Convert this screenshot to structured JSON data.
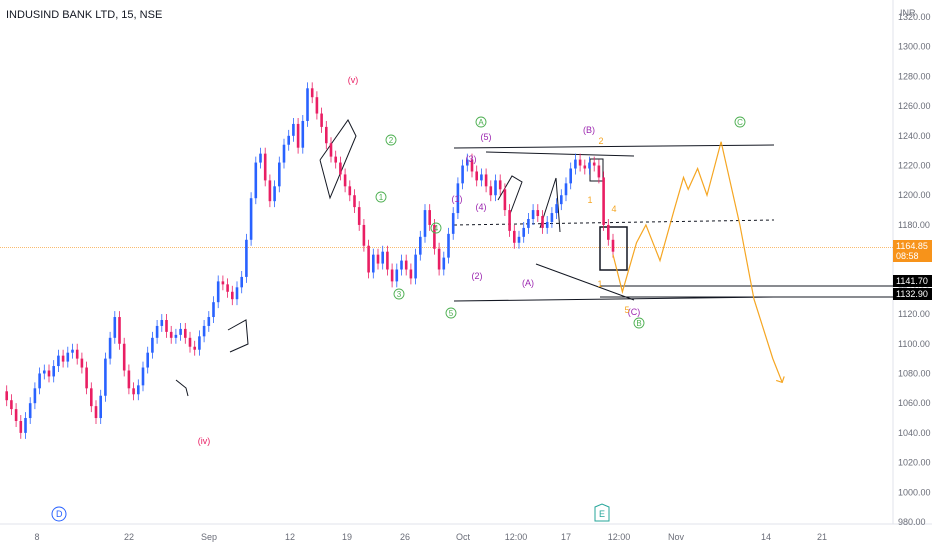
{
  "header": {
    "title": "INDUSIND BANK LTD, 15, NSE"
  },
  "price_axis": {
    "currency": "INR"
  },
  "markers": {
    "dividend": "D",
    "earnings": "E"
  },
  "price_tags": [
    {
      "label": "1164.85",
      "sublabel": "08:58",
      "price": 1164.85,
      "bg": "#f7931a"
    },
    {
      "label": "1141.70",
      "price": 1141.7,
      "bg": "#000000"
    },
    {
      "label": "1132.90",
      "price": 1132.9,
      "bg": "#000000"
    }
  ],
  "colors": {
    "up": "#2962ff",
    "down": "#e91e63",
    "projection": "#f5a623",
    "wave_green": "#4caf50",
    "wave_purple": "#9c27b0",
    "wave_red": "#e91e63"
  },
  "chart_data": {
    "type": "line",
    "title": "INDUSIND BANK LTD, 15, NSE",
    "y_range": [
      980,
      1320
    ],
    "y_ticks": [
      980,
      1000,
      1020,
      1040,
      1060,
      1080,
      1100,
      1120,
      1140,
      1160,
      1180,
      1200,
      1220,
      1240,
      1260,
      1280,
      1300,
      1320
    ],
    "x_ticks": [
      "8",
      "22",
      "Sep",
      "12",
      "19",
      "26",
      "Oct",
      "12:00",
      "17",
      "12:00",
      "Nov",
      "14",
      "21"
    ],
    "series": [
      {
        "name": "",
        "points": [
          [
            0,
            1068
          ],
          [
            1,
            1062
          ],
          [
            2,
            1056
          ],
          [
            3,
            1048
          ],
          [
            4,
            1040
          ],
          [
            5,
            1050
          ],
          [
            6,
            1060
          ],
          [
            7,
            1070
          ],
          [
            8,
            1080
          ],
          [
            9,
            1082
          ],
          [
            10,
            1078
          ],
          [
            11,
            1085
          ],
          [
            12,
            1092
          ],
          [
            13,
            1088
          ],
          [
            14,
            1094
          ],
          [
            15,
            1096
          ],
          [
            16,
            1090
          ],
          [
            17,
            1084
          ],
          [
            18,
            1070
          ],
          [
            19,
            1058
          ],
          [
            20,
            1050
          ],
          [
            21,
            1065
          ],
          [
            22,
            1090
          ],
          [
            23,
            1104
          ],
          [
            24,
            1118
          ],
          [
            25,
            1100
          ],
          [
            26,
            1082
          ],
          [
            27,
            1070
          ],
          [
            28,
            1066
          ],
          [
            29,
            1072
          ],
          [
            30,
            1084
          ],
          [
            31,
            1094
          ],
          [
            32,
            1104
          ],
          [
            33,
            1112
          ],
          [
            34,
            1116
          ],
          [
            35,
            1108
          ],
          [
            36,
            1104
          ],
          [
            37,
            1106
          ],
          [
            38,
            1110
          ],
          [
            39,
            1104
          ],
          [
            40,
            1098
          ],
          [
            41,
            1096
          ],
          [
            42,
            1105
          ],
          [
            43,
            1112
          ],
          [
            44,
            1118
          ],
          [
            45,
            1128
          ],
          [
            46,
            1142
          ],
          [
            47,
            1140
          ],
          [
            48,
            1135
          ],
          [
            49,
            1130
          ],
          [
            50,
            1138
          ],
          [
            51,
            1145
          ],
          [
            52,
            1170
          ],
          [
            53,
            1198
          ],
          [
            54,
            1222
          ],
          [
            55,
            1228
          ],
          [
            56,
            1210
          ],
          [
            57,
            1196
          ],
          [
            58,
            1206
          ],
          [
            59,
            1222
          ],
          [
            60,
            1234
          ],
          [
            61,
            1240
          ],
          [
            62,
            1248
          ],
          [
            63,
            1232
          ],
          [
            64,
            1250
          ],
          [
            65,
            1272
          ],
          [
            66,
            1266
          ],
          [
            67,
            1255
          ],
          [
            68,
            1246
          ],
          [
            69,
            1235
          ],
          [
            70,
            1226
          ],
          [
            71,
            1222
          ],
          [
            72,
            1214
          ],
          [
            73,
            1206
          ],
          [
            74,
            1200
          ],
          [
            75,
            1192
          ],
          [
            76,
            1180
          ],
          [
            77,
            1166
          ],
          [
            78,
            1148
          ],
          [
            79,
            1160
          ],
          [
            80,
            1154
          ],
          [
            81,
            1162
          ],
          [
            82,
            1150
          ],
          [
            83,
            1142
          ],
          [
            84,
            1150
          ],
          [
            85,
            1156
          ],
          [
            86,
            1150
          ],
          [
            87,
            1144
          ],
          [
            88,
            1160
          ],
          [
            89,
            1172
          ],
          [
            90,
            1190
          ],
          [
            91,
            1180
          ],
          [
            92,
            1164
          ],
          [
            93,
            1150
          ],
          [
            94,
            1158
          ],
          [
            95,
            1174
          ],
          [
            96,
            1188
          ],
          [
            97,
            1208
          ],
          [
            98,
            1220
          ],
          [
            99,
            1224
          ],
          [
            100,
            1216
          ],
          [
            101,
            1210
          ],
          [
            102,
            1214
          ],
          [
            103,
            1206
          ],
          [
            104,
            1200
          ],
          [
            105,
            1210
          ],
          [
            106,
            1204
          ],
          [
            107,
            1190
          ],
          [
            108,
            1176
          ],
          [
            109,
            1168
          ],
          [
            110,
            1172
          ],
          [
            111,
            1178
          ],
          [
            112,
            1184
          ],
          [
            113,
            1190
          ],
          [
            114,
            1186
          ],
          [
            115,
            1178
          ],
          [
            116,
            1182
          ],
          [
            117,
            1188
          ],
          [
            118,
            1194
          ],
          [
            119,
            1200
          ],
          [
            120,
            1208
          ],
          [
            121,
            1218
          ],
          [
            122,
            1224
          ],
          [
            123,
            1220
          ],
          [
            124,
            1218
          ],
          [
            125,
            1222
          ],
          [
            126,
            1220
          ],
          [
            127,
            1212
          ],
          [
            128,
            1180
          ],
          [
            129,
            1170
          ],
          [
            130,
            1162
          ]
        ]
      },
      {
        "name": "",
        "points": [
          [
            130,
            1160
          ],
          [
            132,
            1135
          ],
          [
            135,
            1168
          ],
          [
            137,
            1180
          ],
          [
            140,
            1156
          ],
          [
            143,
            1190
          ],
          [
            145,
            1212
          ],
          [
            146,
            1204
          ],
          [
            148,
            1218
          ],
          [
            150,
            1200
          ],
          [
            153,
            1236
          ],
          [
            157,
            1180
          ],
          [
            160,
            1130
          ],
          [
            164,
            1090
          ],
          [
            166,
            1074
          ]
        ]
      }
    ]
  },
  "wave_labels": [
    {
      "text": "(v)",
      "color": "#e91e63",
      "x": 353,
      "y": 83
    },
    {
      "text": "(iv)",
      "color": "#e91e63",
      "x": 204,
      "y": 444
    },
    {
      "text": "(B)",
      "color": "#9c27b0",
      "x": 589,
      "y": 133
    },
    {
      "text": "(A)",
      "color": "#9c27b0",
      "x": 528,
      "y": 286
    },
    {
      "text": "(C)",
      "color": "#9c27b0",
      "x": 634,
      "y": 315
    },
    {
      "text": "(1)",
      "color": "#9c27b0",
      "x": 457,
      "y": 202
    },
    {
      "text": "(2)",
      "color": "#9c27b0",
      "x": 477,
      "y": 279
    },
    {
      "text": "(3)",
      "color": "#9c27b0",
      "x": 471,
      "y": 162
    },
    {
      "text": "(4)",
      "color": "#9c27b0",
      "x": 481,
      "y": 210
    },
    {
      "text": "(5)",
      "color": "#9c27b0",
      "x": 486,
      "y": 140
    }
  ],
  "wave_circles": [
    {
      "text": "1",
      "x": 381,
      "y": 200
    },
    {
      "text": "2",
      "x": 391,
      "y": 143
    },
    {
      "text": "3",
      "x": 399,
      "y": 297
    },
    {
      "text": "4",
      "x": 436,
      "y": 231
    },
    {
      "text": "5",
      "x": 451,
      "y": 316
    },
    {
      "text": "A",
      "x": 481,
      "y": 125
    },
    {
      "text": "B",
      "x": 639,
      "y": 326
    },
    {
      "text": "C",
      "x": 740,
      "y": 125
    }
  ],
  "small_labels": [
    {
      "text": "1",
      "x": 590,
      "y": 203,
      "color": "#f5a623"
    },
    {
      "text": "2",
      "x": 601,
      "y": 144,
      "color": "#f5a623"
    },
    {
      "text": "4",
      "x": 614,
      "y": 212,
      "color": "#f5a623"
    },
    {
      "text": "1",
      "x": 600,
      "y": 287,
      "color": "#f5a623"
    },
    {
      "text": "5",
      "x": 627,
      "y": 313,
      "color": "#f5a623"
    }
  ]
}
